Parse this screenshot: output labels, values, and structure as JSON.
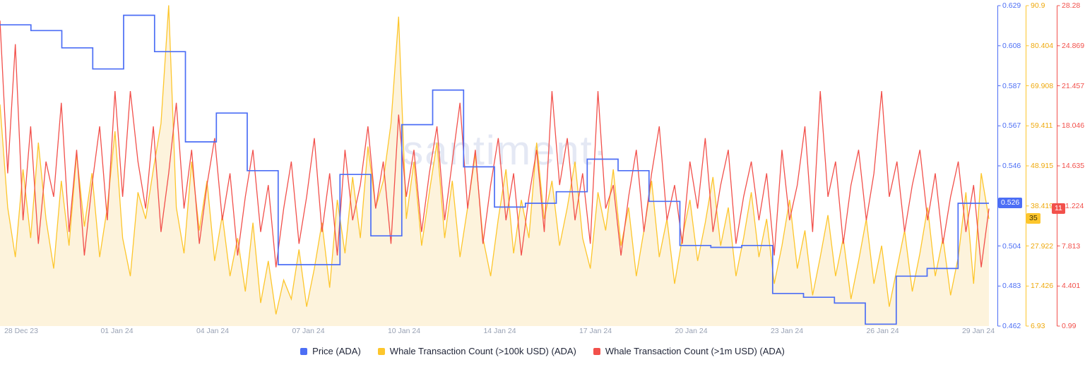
{
  "watermark": "·santiment·",
  "legend": [
    {
      "label": "Price (ADA)",
      "color": "#4c6ef5"
    },
    {
      "label": "Whale Transaction Count (>100k USD) (ADA)",
      "color": "#fdc62c"
    },
    {
      "label": "Whale Transaction Count (>1m USD) (ADA)",
      "color": "#f2504b"
    }
  ],
  "y_axes": [
    {
      "id": "price",
      "tick_color": "#4c6ef5",
      "line_color": "#4c6ef5",
      "ticks": [
        "0.629",
        "0.608",
        "0.587",
        "0.567",
        "0.546",
        "0.526",
        "0.504",
        "0.483",
        "0.462"
      ],
      "badge": {
        "label": "0.526",
        "bg": "#4c6ef5",
        "text": "#ffffff"
      }
    },
    {
      "id": "whale-100k",
      "tick_color": "#efa90d",
      "line_color": "#fdc62c",
      "ticks": [
        "90.9",
        "80.404",
        "69.908",
        "59.411",
        "48.915",
        "38.419",
        "27.922",
        "17.426",
        "6.93"
      ],
      "badge": {
        "label": "35",
        "bg": "#fdc62c",
        "text": "#3d3104"
      }
    },
    {
      "id": "whale-1m",
      "tick_color": "#f2504b",
      "line_color": "#f2504b",
      "ticks": [
        "28.28",
        "24.869",
        "21.457",
        "18.046",
        "14.635",
        "11.224",
        "7.813",
        "4.401",
        "0.99"
      ],
      "badge": {
        "label": "11",
        "bg": "#f2504b",
        "text": "#ffffff"
      }
    }
  ],
  "chart_data": {
    "type": "line",
    "title": "",
    "watermark": "·santiment·",
    "x_ticks": [
      "28 Dec 23",
      "01 Jan 24",
      "04 Jan 24",
      "07 Jan 24",
      "10 Jan 24",
      "14 Jan 24",
      "17 Jan 24",
      "20 Jan 24",
      "23 Jan 24",
      "26 Jan 24",
      "29 Jan 24"
    ],
    "grid": false,
    "legend_position": "bottom",
    "series": [
      {
        "name": "Price (ADA)",
        "color": "#4c6ef5",
        "style": "step",
        "axis_min": 0.462,
        "axis_max": 0.629,
        "last_value": 0.526,
        "values": [
          0.619,
          0.616,
          0.607,
          0.596,
          0.624,
          0.605,
          0.558,
          0.573,
          0.543,
          0.494,
          0.494,
          0.541,
          0.509,
          0.567,
          0.585,
          0.545,
          0.524,
          0.526,
          0.532,
          0.549,
          0.543,
          0.527,
          0.504,
          0.503,
          0.504,
          0.479,
          0.477,
          0.474,
          0.463,
          0.488,
          0.492,
          0.526,
          0.526
        ]
      },
      {
        "name": "Whale Transaction Count (>100k USD) (ADA)",
        "color": "#fdc62c",
        "style": "line",
        "fill": "#fdf3dc",
        "axis_min": 6.93,
        "axis_max": 90.9,
        "last_value": 35,
        "values": [
          65,
          38,
          25,
          48,
          30,
          55,
          35,
          22,
          45,
          28,
          52,
          33,
          47,
          25,
          38,
          58,
          30,
          20,
          42,
          35,
          48,
          60,
          91,
          38,
          26,
          50,
          32,
          45,
          24,
          36,
          20,
          30,
          16,
          34,
          13,
          24,
          10,
          19,
          14,
          27,
          12,
          22,
          34,
          17,
          40,
          26,
          46,
          30,
          54,
          38,
          45,
          60,
          88,
          35,
          50,
          28,
          42,
          55,
          30,
          45,
          25,
          38,
          52,
          30,
          20,
          35,
          48,
          26,
          40,
          30,
          55,
          35,
          45,
          28,
          38,
          50,
          30,
          22,
          42,
          32,
          48,
          28,
          38,
          20,
          32,
          45,
          25,
          35,
          18,
          30,
          40,
          24,
          34,
          46,
          28,
          38,
          20,
          30,
          42,
          25,
          35,
          18,
          28,
          40,
          22,
          32,
          15,
          25,
          36,
          20,
          30,
          14,
          24,
          35,
          18,
          28,
          12,
          22,
          32,
          16,
          26,
          38,
          20,
          30,
          15,
          25,
          42,
          18,
          47,
          35
        ]
      },
      {
        "name": "Whale Transaction Count (>1m USD) (ADA)",
        "color": "#f2504b",
        "style": "line",
        "axis_min": 0.99,
        "axis_max": 28.28,
        "last_value": 11,
        "values": [
          27,
          14,
          25,
          10,
          18,
          8,
          15,
          12,
          20,
          9,
          16,
          7,
          13,
          18,
          10,
          21,
          12,
          21,
          15,
          11,
          18,
          9,
          14,
          20,
          11,
          16,
          8,
          13,
          17,
          10,
          14,
          7,
          12,
          16,
          9,
          13,
          6,
          11,
          15,
          8,
          12,
          17,
          9,
          14,
          7,
          16,
          10,
          13,
          18,
          11,
          15,
          8,
          19,
          12,
          16,
          9,
          14,
          18,
          10,
          15,
          20,
          11,
          16,
          8,
          13,
          17,
          10,
          14,
          7,
          12,
          16,
          9,
          21,
          13,
          17,
          10,
          14,
          8,
          21,
          11,
          13,
          7,
          12,
          16,
          9,
          14,
          18,
          10,
          13,
          8,
          15,
          11,
          17,
          9,
          13,
          16,
          8,
          12,
          15,
          10,
          14,
          7,
          16,
          10,
          13,
          18,
          9,
          21,
          12,
          15,
          8,
          13,
          16,
          10,
          14,
          21,
          12,
          15,
          9,
          13,
          16,
          10,
          14,
          8,
          12,
          15,
          9,
          13,
          6,
          11
        ]
      }
    ]
  }
}
